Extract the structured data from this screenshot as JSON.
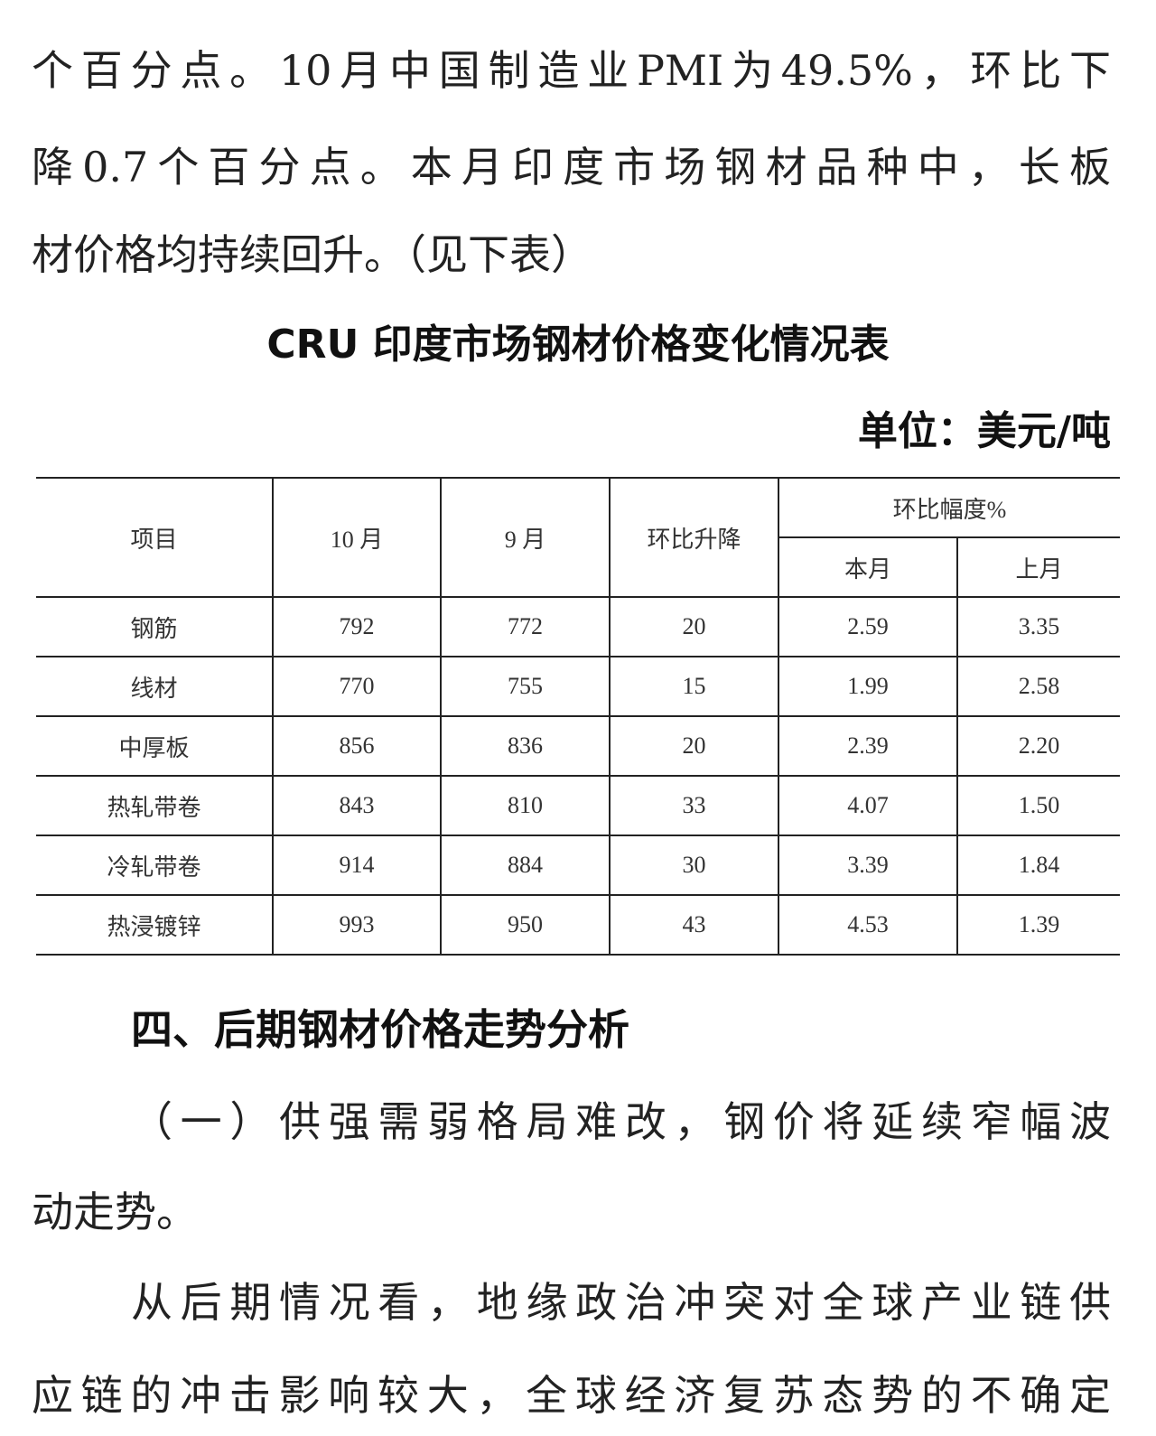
{
  "paragraph1": [
    "个百分点。10月中国制造业PMI为49.5%，环比下",
    "降0.7个百分点。本月印度市场钢材品种中，长板",
    "材价格均持续回升。（见下表）"
  ],
  "table_title": "CRU 印度市场钢材价格变化情况表",
  "unit": "单位：美元/吨",
  "table": {
    "headers": {
      "item": "项目",
      "oct": "10 月",
      "sep": "9 月",
      "change": "环比升降",
      "pct_group": "环比幅度%",
      "this_month": "本月",
      "last_month": "上月"
    },
    "rows": [
      [
        "钢筋",
        "792",
        "772",
        "20",
        "2.59",
        "3.35"
      ],
      [
        "线材",
        "770",
        "755",
        "15",
        "1.99",
        "2.58"
      ],
      [
        "中厚板",
        "856",
        "836",
        "20",
        "2.39",
        "2.20"
      ],
      [
        "热轧带卷",
        "843",
        "810",
        "33",
        "4.07",
        "1.50"
      ],
      [
        "冷轧带卷",
        "914",
        "884",
        "30",
        "3.39",
        "1.84"
      ],
      [
        "热浸镀锌",
        "993",
        "950",
        "43",
        "4.53",
        "1.39"
      ]
    ]
  },
  "section_heading": "四、后期钢材价格走势分析",
  "subsection": [
    "（一）供强需弱格局难改，钢价将延续窄幅波",
    "动走势。"
  ],
  "paragraph2": [
    "从后期情况看，地缘政治冲突对全球产业链供",
    "应链的冲击影响较大，全球经济复苏态势的不确定"
  ]
}
